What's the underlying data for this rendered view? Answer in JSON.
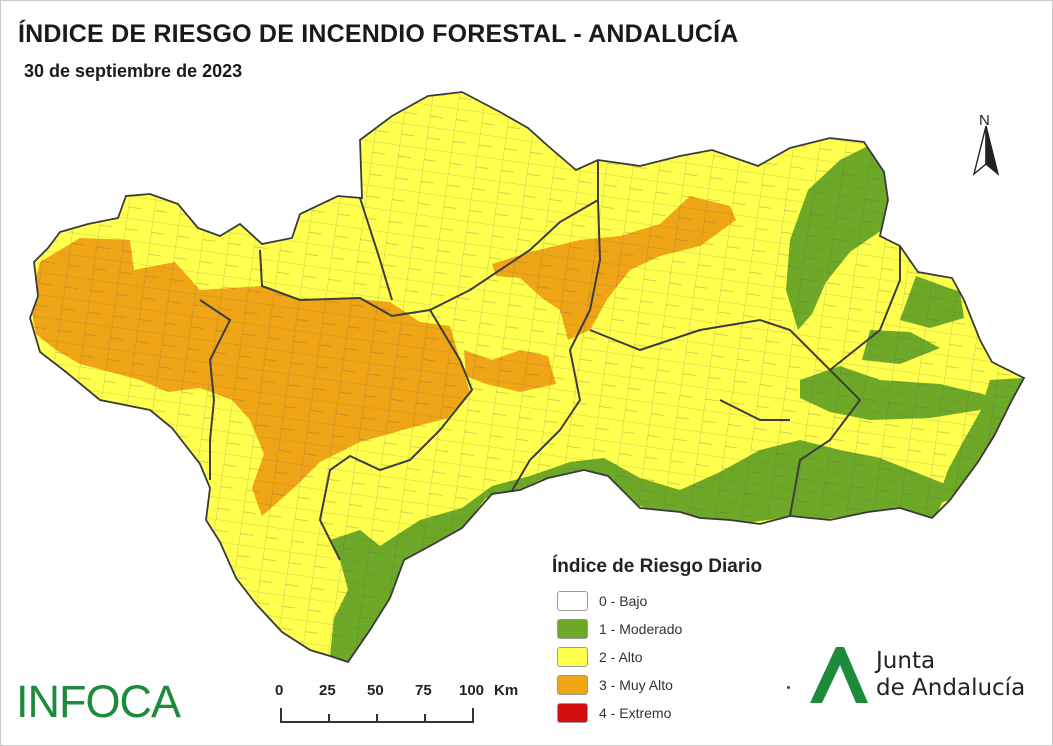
{
  "header": {
    "title": "ÍNDICE DE RIESGO DE INCENDIO FORESTAL - ANDALUCÍA",
    "date": "30 de septiembre de 2023"
  },
  "north_arrow": {
    "label": "N"
  },
  "legend": {
    "title": "Índice de Riesgo Diario",
    "items": [
      {
        "label": "0 - Bajo",
        "color": "#ffffff"
      },
      {
        "label": "1 - Moderado",
        "color": "#6ea827"
      },
      {
        "label": "2 - Alto",
        "color": "#ffff4d"
      },
      {
        "label": "3 - Muy Alto",
        "color": "#f0a516"
      },
      {
        "label": "4 - Extremo",
        "color": "#d20e0e"
      }
    ]
  },
  "scale_bar": {
    "ticks": [
      "0",
      "25",
      "50",
      "75",
      "100"
    ],
    "unit": "Km"
  },
  "logos": {
    "left": "INFOCA",
    "right_line1": "Junta",
    "right_line2": "de Andalucía"
  },
  "colors": {
    "moderado": "#6ea827",
    "alto": "#ffff4d",
    "muy_alto": "#f0a516",
    "border": "#4a4a4a",
    "brand_green": "#1e8a3c"
  }
}
